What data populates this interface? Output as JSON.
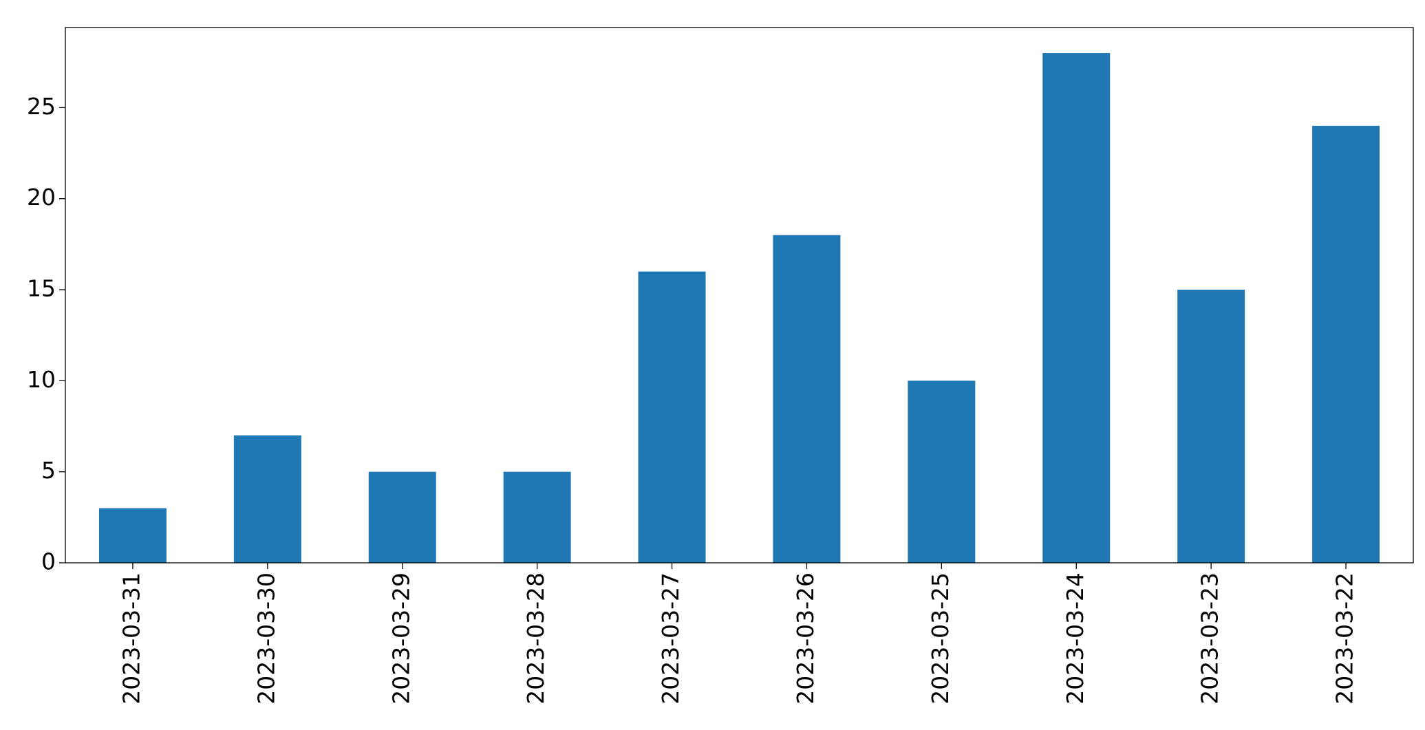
{
  "chart_data": {
    "type": "bar",
    "categories": [
      "2023-03-31",
      "2023-03-30",
      "2023-03-29",
      "2023-03-28",
      "2023-03-27",
      "2023-03-26",
      "2023-03-25",
      "2023-03-24",
      "2023-03-23",
      "2023-03-22"
    ],
    "values": [
      3,
      7,
      5,
      5,
      16,
      18,
      10,
      28,
      15,
      24
    ],
    "color": "#1f77b4",
    "ylim": [
      0,
      29.4
    ],
    "yticks": [
      0,
      5,
      10,
      15,
      20,
      25
    ],
    "grid": false
  }
}
